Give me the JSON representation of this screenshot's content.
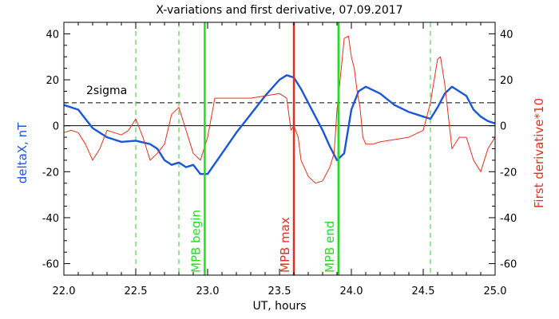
{
  "chart_data": {
    "type": "line",
    "title": "X-variations and first derivative, 07.09.2017",
    "xlabel": "UT, hours",
    "ylabel_left": "deltaX, nT",
    "ylabel_right": "First derivative*10",
    "xlim": [
      22.0,
      25.0
    ],
    "ylim": [
      -65,
      45
    ],
    "x_ticks": [
      22.0,
      22.5,
      23.0,
      23.5,
      24.0,
      24.5,
      25.0
    ],
    "x_tick_labels": [
      "22.0",
      "22.5",
      "23.0",
      "23.5",
      "24.0",
      "24.5",
      "25.0"
    ],
    "y_ticks": [
      40,
      20,
      0,
      -20,
      -40,
      -60
    ],
    "y_tick_labels": [
      "40",
      "20",
      "0",
      "-20",
      "-40",
      "-60"
    ],
    "colors": {
      "deltaX": "#1a56d6",
      "derivative": "#e0301e",
      "mpb_line": "#22dd22",
      "max_line": "#e0301e",
      "dashed_green": "#33cc33"
    },
    "series": [
      {
        "key": "deltaX",
        "x": [
          22.0,
          22.1,
          22.2,
          22.3,
          22.4,
          22.5,
          22.6,
          22.65,
          22.7,
          22.75,
          22.8,
          22.85,
          22.9,
          22.95,
          23.0,
          23.1,
          23.2,
          23.3,
          23.4,
          23.5,
          23.55,
          23.6,
          23.65,
          23.7,
          23.8,
          23.85,
          23.9,
          23.95,
          24.0,
          24.05,
          24.1,
          24.2,
          24.3,
          24.4,
          24.5,
          24.55,
          24.6,
          24.65,
          24.7,
          24.8,
          24.85,
          24.9,
          24.95,
          25.0
        ],
        "y": [
          9,
          7,
          -1,
          -5,
          -7,
          -6.5,
          -8,
          -10,
          -15,
          -17,
          -16,
          -18,
          -17,
          -21,
          -21,
          -12,
          -3,
          5,
          13,
          20,
          22,
          21,
          16,
          10,
          -2,
          -9,
          -15,
          -12,
          7,
          15,
          17,
          14,
          9,
          6,
          4,
          3,
          8,
          14,
          17,
          13,
          7,
          4,
          2,
          1
        ]
      },
      {
        "key": "derivative",
        "x": [
          22.0,
          22.05,
          22.1,
          22.15,
          22.2,
          22.25,
          22.3,
          22.35,
          22.4,
          22.45,
          22.5,
          22.55,
          22.6,
          22.65,
          22.7,
          22.75,
          22.8,
          22.85,
          22.9,
          22.95,
          23.0,
          23.05,
          23.1,
          23.2,
          23.3,
          23.4,
          23.5,
          23.55,
          23.58,
          23.6,
          23.63,
          23.65,
          23.7,
          23.75,
          23.8,
          23.85,
          23.88,
          23.9,
          23.93,
          23.95,
          23.98,
          24.0,
          24.02,
          24.04,
          24.06,
          24.08,
          24.1,
          24.15,
          24.2,
          24.3,
          24.4,
          24.5,
          24.55,
          24.6,
          24.62,
          24.65,
          24.7,
          24.75,
          24.8,
          24.85,
          24.9,
          24.95,
          25.0
        ],
        "y": [
          -3,
          -2,
          -3,
          -8,
          -15,
          -10,
          -2,
          -3,
          -4,
          -2,
          3,
          -5,
          -15,
          -12,
          -8,
          5,
          8,
          -2,
          -12,
          -15,
          -5,
          12,
          12,
          12,
          12,
          13,
          14,
          12,
          -2,
          0,
          -5,
          -15,
          -22,
          -25,
          -24,
          -18,
          -12,
          7,
          25,
          38,
          39,
          30,
          25,
          15,
          8,
          -5,
          -8,
          -8,
          -7,
          -6,
          -5,
          -2,
          10,
          29,
          30,
          18,
          -10,
          -5,
          -5,
          -15,
          -20,
          -10,
          -5
        ]
      }
    ],
    "reference_lines": {
      "zero": {
        "y": 0
      },
      "sigma": {
        "y": 10,
        "label": "2sigma"
      },
      "dashed_green_x": [
        22.5,
        22.8,
        24.55
      ],
      "events": [
        {
          "x": 22.98,
          "label": "MPB begin",
          "color": "#22dd22"
        },
        {
          "x": 23.6,
          "label": "MPB max",
          "color": "#e0301e"
        },
        {
          "x": 23.91,
          "label": "MPB end",
          "color": "#22dd22"
        }
      ]
    }
  }
}
